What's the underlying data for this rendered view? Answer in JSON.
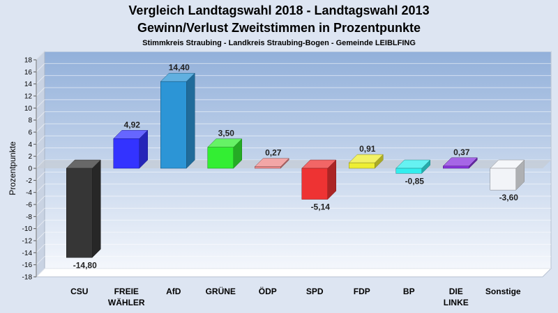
{
  "chart_data": {
    "type": "bar",
    "title": "Vergleich Landtagswahl 2018 - Landtagswahl 2013",
    "subtitle": "Gewinn/Verlust Zweitstimmen in Prozentpunkte",
    "subsubtitle": "Stimmkreis Straubing - Landkreis Straubing-Bogen - Gemeinde LEIBLFING",
    "ylabel": "Prozentpunkte",
    "ylim": [
      -18,
      18
    ],
    "ytick_step": 2,
    "grid": true,
    "categories": [
      {
        "line1": "CSU",
        "line2": ""
      },
      {
        "line1": "FREIE",
        "line2": "WÄHLER"
      },
      {
        "line1": "AfD",
        "line2": ""
      },
      {
        "line1": "GRÜNE",
        "line2": ""
      },
      {
        "line1": "ÖDP",
        "line2": ""
      },
      {
        "line1": "SPD",
        "line2": ""
      },
      {
        "line1": "FDP",
        "line2": ""
      },
      {
        "line1": "BP",
        "line2": ""
      },
      {
        "line1": "DIE",
        "line2": "LINKE"
      },
      {
        "line1": "Sonstige",
        "line2": ""
      }
    ],
    "values": [
      -14.8,
      4.92,
      14.4,
      3.5,
      0.27,
      -5.14,
      0.91,
      -0.85,
      0.37,
      -3.6
    ],
    "value_labels": [
      "-14,80",
      "4,92",
      "14,40",
      "3,50",
      "0,27",
      "-5,14",
      "0,91",
      "-0,85",
      "0,37",
      "-3,60"
    ],
    "colors": [
      "#363636",
      "#3333ff",
      "#2c95d6",
      "#33ee33",
      "#ee8888",
      "#ee3333",
      "#eeee33",
      "#33eeee",
      "#8833dd",
      "#f2f4f8"
    ]
  }
}
